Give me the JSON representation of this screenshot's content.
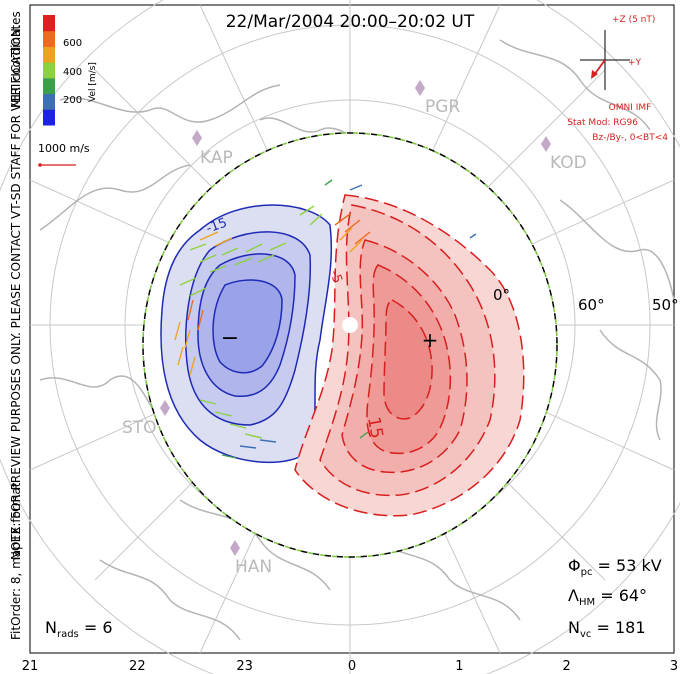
{
  "title": "22/Mar/2004 20:00–20:02 UT",
  "side_note": "NOTE: FOR PREVIEW PURPOSES ONLY. PLEASE CONTACT VT-SD STAFF FOR VERIFICATION.",
  "fit_order": "FitOrder: 8, mapEX format",
  "mlt_label": "MLT coordinates",
  "colorbar": {
    "label": "Vel [m/s]",
    "ticks": [
      "600",
      "400",
      "200"
    ],
    "colors": [
      "#1e22e8",
      "#3c6fb4",
      "#3ca04a",
      "#8cd23c",
      "#f0a21e",
      "#f06a1e",
      "#e21e1e"
    ]
  },
  "reference_vector": {
    "label": "1000 m/s"
  },
  "imf": {
    "z_label": "+Z (5 nT)",
    "y_label": "+Y",
    "source": "OMNI IMF",
    "model": "Stat Mod: RG96",
    "condition": "Bz-/By-, 0<BT<4"
  },
  "stations": [
    "PGR",
    "KAP",
    "KOD",
    "STO",
    "HAN"
  ],
  "latitude_labels": [
    "60°",
    "50°",
    "0°"
  ],
  "contour_labels": [
    "-15",
    "-5",
    "15",
    "5"
  ],
  "potential_markers": {
    "min": "−",
    "max": "+"
  },
  "mlt_ticks": [
    "21",
    "22",
    "23",
    "0",
    "1",
    "2",
    "3"
  ],
  "stats": {
    "phi_pc": "Φ",
    "phi_pc_sub": "pc",
    "phi_pc_value": " = 53 kV",
    "lambda_hm": "Λ",
    "lambda_hm_sub": "HM",
    "lambda_hm_value": " = 64°",
    "n_vc": "N",
    "n_vc_sub": "vc",
    "n_vc_value": " = 181",
    "n_rads": "N",
    "n_rads_sub": "rads",
    "n_rads_value": " = 6"
  },
  "colors": {
    "neg_fill": "#c8cdf0",
    "neg_line": "#1e2ab4",
    "pos_fill": "#f5b4b0",
    "pos_line": "#d81e1e",
    "hmb": "#7ac83c"
  }
}
